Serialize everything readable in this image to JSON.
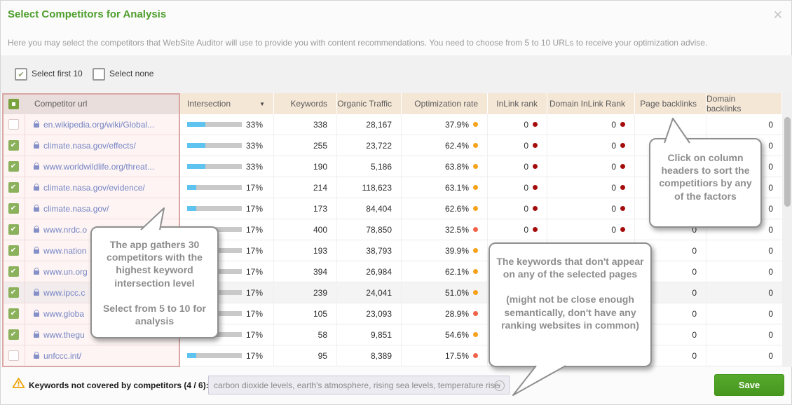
{
  "dialog": {
    "title": "Select Competitors for Analysis",
    "subtitle": "Here you may select the competitors that WebSite Auditor will use to provide you with content recommendations. You need to choose from 5 to 10 URLs to receive your optimization advise.",
    "close_glyph": "✕"
  },
  "toolbar": {
    "select_first_label": "Select first 10",
    "select_first_checked": true,
    "select_none_label": "Select none",
    "select_none_checked": false
  },
  "table": {
    "columns": [
      "Competitor url",
      "Intersection",
      "Keywords",
      "Organic Traffic",
      "Optimization rate",
      "InLink rank",
      "Domain InLink Rank",
      "Page backlinks",
      "Domain backlinks"
    ],
    "sorted_column": "Intersection",
    "rows": [
      {
        "url": "en.wikipedia.org/wiki/Global...",
        "checked": false,
        "intersection": 33,
        "intersection_label": "33%",
        "keywords": "338",
        "organic_traffic": "28,167",
        "optimization_rate": "37.9%",
        "optimization_dot": "orange",
        "inlink_rank": "0",
        "inlink_dot": "darkred",
        "domain_inlink_rank": "0",
        "domain_inlink_dot": "darkred",
        "page_backlinks": "",
        "domain_backlinks": "0",
        "highlighted": false
      },
      {
        "url": "climate.nasa.gov/effects/",
        "checked": true,
        "intersection": 33,
        "intersection_label": "33%",
        "keywords": "255",
        "organic_traffic": "23,722",
        "optimization_rate": "62.4%",
        "optimization_dot": "orange",
        "inlink_rank": "0",
        "inlink_dot": "darkred",
        "domain_inlink_rank": "0",
        "domain_inlink_dot": "darkred",
        "page_backlinks": "",
        "domain_backlinks": "0",
        "highlighted": false
      },
      {
        "url": "www.worldwildlife.org/threat...",
        "checked": true,
        "intersection": 33,
        "intersection_label": "33%",
        "keywords": "190",
        "organic_traffic": "5,186",
        "optimization_rate": "63.8%",
        "optimization_dot": "orange",
        "inlink_rank": "0",
        "inlink_dot": "darkred",
        "domain_inlink_rank": "0",
        "domain_inlink_dot": "darkred",
        "page_backlinks": "",
        "domain_backlinks": "0",
        "highlighted": false
      },
      {
        "url": "climate.nasa.gov/evidence/",
        "checked": true,
        "intersection": 17,
        "intersection_label": "17%",
        "keywords": "214",
        "organic_traffic": "118,623",
        "optimization_rate": "63.1%",
        "optimization_dot": "orange",
        "inlink_rank": "0",
        "inlink_dot": "darkred",
        "domain_inlink_rank": "0",
        "domain_inlink_dot": "darkred",
        "page_backlinks": "",
        "domain_backlinks": "0",
        "highlighted": false
      },
      {
        "url": "climate.nasa.gov/",
        "checked": true,
        "intersection": 17,
        "intersection_label": "17%",
        "keywords": "173",
        "organic_traffic": "84,404",
        "optimization_rate": "62.6%",
        "optimization_dot": "orange",
        "inlink_rank": "0",
        "inlink_dot": "darkred",
        "domain_inlink_rank": "0",
        "domain_inlink_dot": "darkred",
        "page_backlinks": "",
        "domain_backlinks": "0",
        "highlighted": false
      },
      {
        "url": "www.nrdc.o",
        "checked": true,
        "intersection": 17,
        "intersection_label": "17%",
        "keywords": "400",
        "organic_traffic": "78,850",
        "optimization_rate": "32.5%",
        "optimization_dot": "red",
        "inlink_rank": "0",
        "inlink_dot": "darkred",
        "domain_inlink_rank": "0",
        "domain_inlink_dot": "darkred",
        "page_backlinks": "0",
        "domain_backlinks": "0",
        "highlighted": false
      },
      {
        "url": "www.nation",
        "checked": true,
        "intersection": 17,
        "intersection_label": "17%",
        "keywords": "193",
        "organic_traffic": "38,793",
        "optimization_rate": "39.9%",
        "optimization_dot": "orange",
        "inlink_rank": "",
        "inlink_dot": "",
        "domain_inlink_rank": "",
        "domain_inlink_dot": "",
        "page_backlinks": "0",
        "domain_backlinks": "0",
        "highlighted": false
      },
      {
        "url": "www.un.org",
        "checked": true,
        "intersection": 17,
        "intersection_label": "17%",
        "keywords": "394",
        "organic_traffic": "26,984",
        "optimization_rate": "62.1%",
        "optimization_dot": "orange",
        "inlink_rank": "",
        "inlink_dot": "",
        "domain_inlink_rank": "",
        "domain_inlink_dot": "",
        "page_backlinks": "0",
        "domain_backlinks": "0",
        "highlighted": false
      },
      {
        "url": "www.ipcc.c",
        "checked": true,
        "intersection": 17,
        "intersection_label": "17%",
        "keywords": "239",
        "organic_traffic": "24,041",
        "optimization_rate": "51.0%",
        "optimization_dot": "orange",
        "inlink_rank": "",
        "inlink_dot": "",
        "domain_inlink_rank": "",
        "domain_inlink_dot": "",
        "page_backlinks": "0",
        "domain_backlinks": "0",
        "highlighted": true
      },
      {
        "url": "www.globa",
        "checked": true,
        "intersection": 17,
        "intersection_label": "17%",
        "keywords": "105",
        "organic_traffic": "23,093",
        "optimization_rate": "28.9%",
        "optimization_dot": "red",
        "inlink_rank": "",
        "inlink_dot": "",
        "domain_inlink_rank": "",
        "domain_inlink_dot": "",
        "page_backlinks": "0",
        "domain_backlinks": "0",
        "highlighted": false
      },
      {
        "url": "www.thegu",
        "checked": true,
        "intersection": 17,
        "intersection_label": "17%",
        "keywords": "58",
        "organic_traffic": "9,851",
        "optimization_rate": "54.6%",
        "optimization_dot": "orange",
        "inlink_rank": "",
        "inlink_dot": "",
        "domain_inlink_rank": "",
        "domain_inlink_dot": "",
        "page_backlinks": "0",
        "domain_backlinks": "0",
        "highlighted": false
      },
      {
        "url": "unfccc.int/",
        "checked": false,
        "intersection": 17,
        "intersection_label": "17%",
        "keywords": "95",
        "organic_traffic": "8,389",
        "optimization_rate": "17.5%",
        "optimization_dot": "red",
        "inlink_rank": "",
        "inlink_dot": "",
        "domain_inlink_rank": "",
        "domain_inlink_dot": "",
        "page_backlinks": "0",
        "domain_backlinks": "0",
        "highlighted": false
      }
    ]
  },
  "tooltips": {
    "app_gathers": {
      "lines": [
        "The app gathers 30 competitors with the highest keyword intersection level",
        "Select from 5 to 10 for analysis"
      ]
    },
    "keywords_uncovered": {
      "lines": [
        "The keywords that don't appear on any of the selected pages",
        "(might not be close enough semantically, don't have any ranking websites in common)"
      ]
    },
    "sort_hint": {
      "lines": [
        "Click on column headers to sort the competitiors by any of the factors"
      ]
    }
  },
  "footer": {
    "warning_label": "Keywords not covered by competitors (4 / 6):",
    "keywords_value": "carbon dioxide levels, earth's atmosphere, rising sea levels, temperature rise",
    "info_glyph": "i",
    "save_label": "Save"
  },
  "colors": {
    "accent_green": "#4d9e2c",
    "header_beige": "#f5e7d6",
    "panel_pink_border": "#d9a7a4",
    "link": "#7584c4",
    "bar_blue": "#5ec3ef",
    "dot_orange": "#f7a21b",
    "dot_red": "#f2644a",
    "dot_darkred": "#a50d0d",
    "checkbox_green": "#8cb15c",
    "save_green": "#4e9f26"
  }
}
